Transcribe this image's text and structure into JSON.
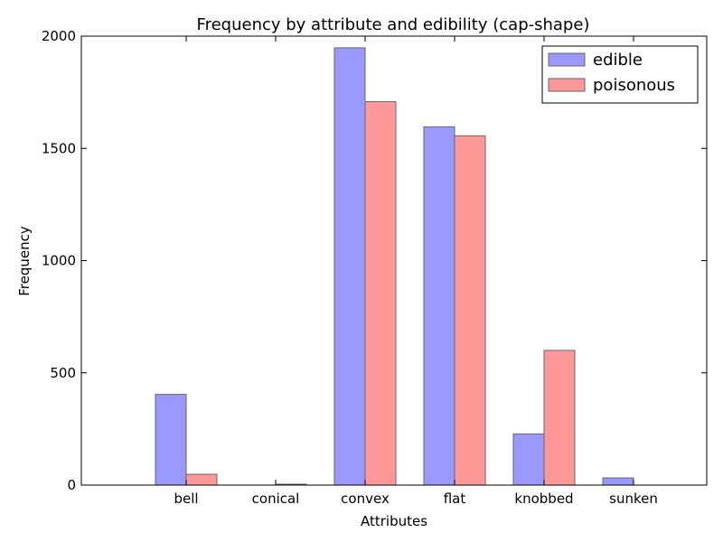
{
  "chart_data": {
    "type": "bar",
    "title": "Frequency by attribute and edibility (cap-shape)",
    "xlabel": "Attributes",
    "ylabel": "Frequency",
    "categories": [
      "bell",
      "conical",
      "convex",
      "flat",
      "knobbed",
      "sunken"
    ],
    "series": [
      {
        "name": "edible",
        "values": [
          404,
          0,
          1948,
          1596,
          228,
          32
        ],
        "color": "#9999ff"
      },
      {
        "name": "poisonous",
        "values": [
          48,
          4,
          1708,
          1556,
          600,
          0
        ],
        "color": "#ff9999"
      }
    ],
    "ylim": [
      0,
      2000
    ],
    "yticks": [
      0,
      500,
      1000,
      1500,
      2000
    ],
    "grid": false,
    "legend": "top-right"
  }
}
